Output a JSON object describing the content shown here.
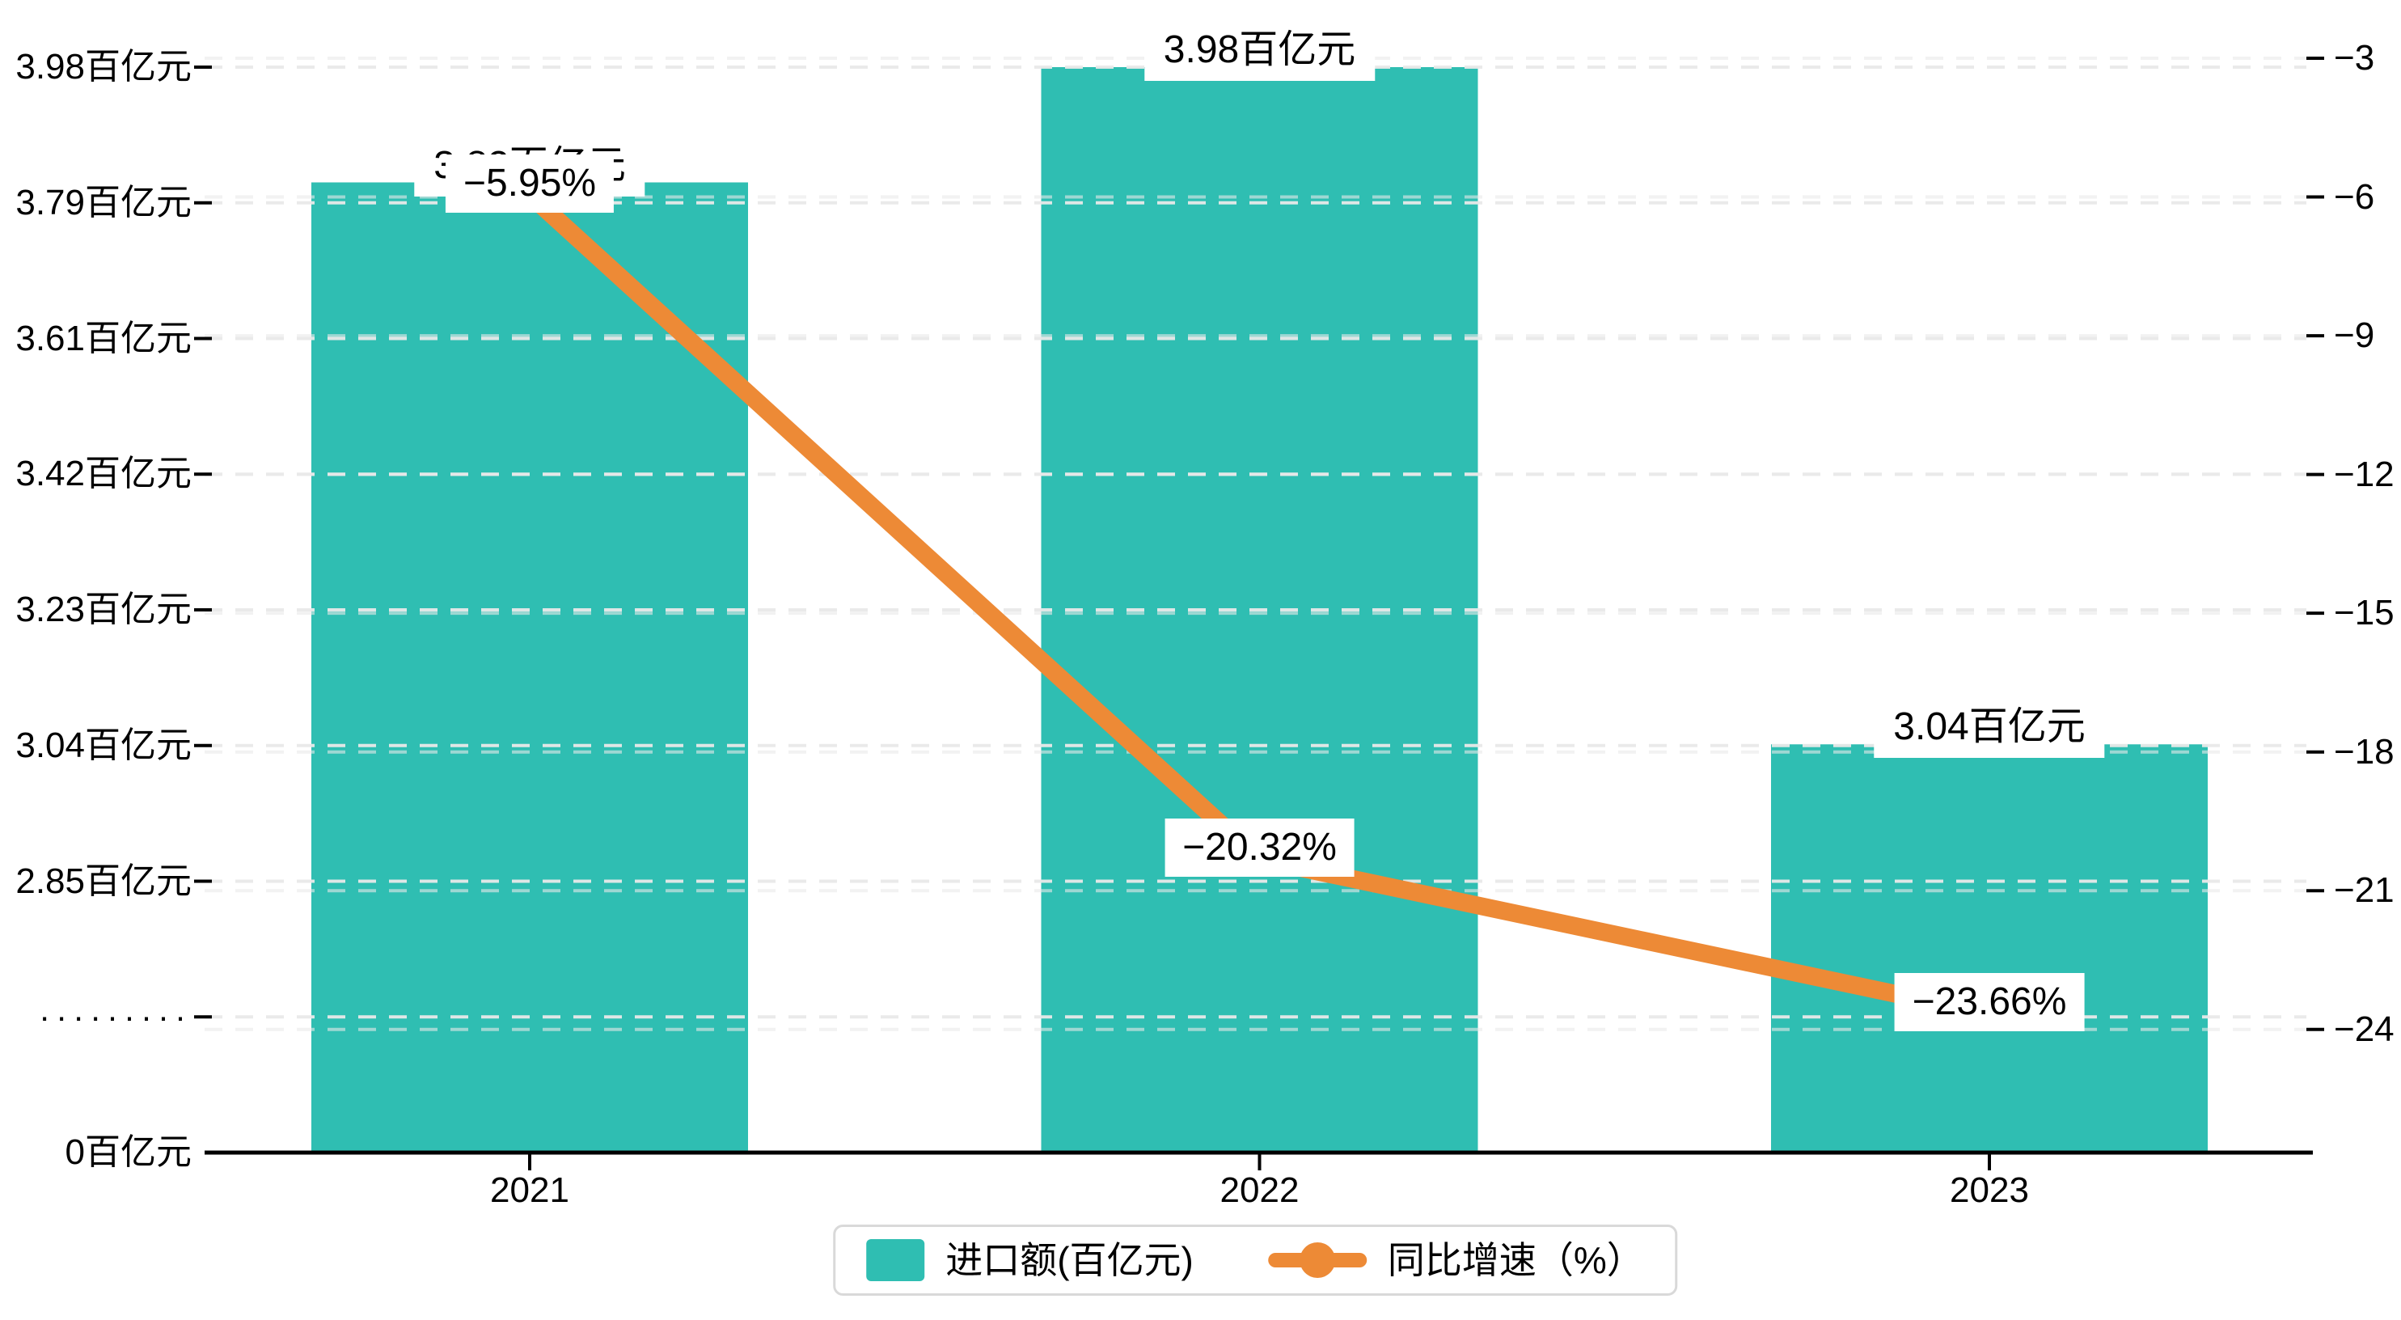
{
  "chart_data": {
    "type": "bar+line",
    "categories": [
      "2021",
      "2022",
      "2023"
    ],
    "series": [
      {
        "name": "进口额(百亿元)",
        "type": "bar",
        "axis": "left",
        "values": [
          3.82,
          3.98,
          3.04
        ],
        "labels": [
          "3.82百亿元",
          "3.98百亿元",
          "3.04百亿元"
        ],
        "color": "#2FBEB2"
      },
      {
        "name": "同比增速（%）",
        "type": "line",
        "axis": "right",
        "values": [
          -5.95,
          -20.32,
          -23.66
        ],
        "labels": [
          "−5.95%",
          "−20.32%",
          "−23.66%"
        ],
        "color": "#ED8A36"
      }
    ],
    "left_axis": {
      "unit": "百亿元",
      "broken_axis": true,
      "tick_labels": [
        "0百亿元",
        "·········",
        "2.85百亿元",
        "3.04百亿元",
        "3.23百亿元",
        "3.42百亿元",
        "3.61百亿元",
        "3.79百亿元",
        "3.98百亿元"
      ]
    },
    "right_axis": {
      "range": [
        -3,
        -24
      ],
      "tick_labels": [
        "−3",
        "−6",
        "−9",
        "−12",
        "−15",
        "−18",
        "−21",
        "−24"
      ]
    },
    "legend": {
      "position": "bottom-center",
      "items": [
        {
          "label": "进口额(百亿元)",
          "marker": "square",
          "color": "#2FBEB2"
        },
        {
          "label": "同比增速（%）",
          "marker": "line-dot",
          "color": "#ED8A36"
        }
      ]
    },
    "grid": {
      "shown": true,
      "style": "dashed",
      "color": "#e9e9e9"
    },
    "colors": {
      "bar": "#2FBEB2",
      "line": "#ED8A36",
      "axis": "#000000",
      "label_background": "#ffffff",
      "background": "#ffffff"
    }
  }
}
